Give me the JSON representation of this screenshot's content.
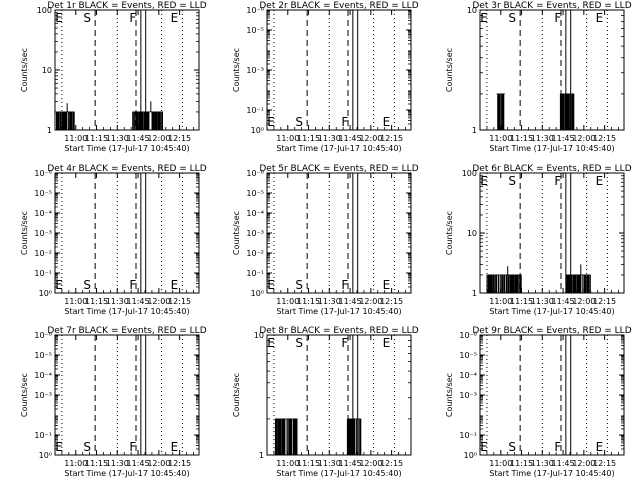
{
  "figure": {
    "xlabel": "Start Time (17-Jul-17 10:45:40)",
    "ylabel": "Counts/sec",
    "xticks": [
      {
        "t": 15,
        "label": "11:00"
      },
      {
        "t": 30,
        "label": "11:15"
      },
      {
        "t": 45,
        "label": "11:30"
      },
      {
        "t": 60,
        "label": "11:45"
      },
      {
        "t": 75,
        "label": "12:00"
      },
      {
        "t": 90,
        "label": "12:15"
      }
    ],
    "xlim_minutes_after_10_45": [
      0,
      104
    ],
    "markers": [
      {
        "t": 5,
        "style": "dotted"
      },
      {
        "t": 29,
        "style": "dashed",
        "letter": "S"
      },
      {
        "t": 45,
        "style": "dotted"
      },
      {
        "t": 58.5,
        "style": "dashed"
      },
      {
        "t": 62,
        "style": "solid",
        "letter": "F"
      },
      {
        "t": 65.5,
        "style": "solid"
      },
      {
        "t": 77,
        "style": "dotted"
      },
      {
        "t": 92,
        "style": "dotted",
        "letter": "E"
      }
    ],
    "left_letter": "E",
    "colors": {
      "events": "#000000",
      "lld": "#ff0000",
      "background": "#ffffff"
    }
  },
  "chart_data": [
    {
      "type": "line",
      "title": "Det 1r BLACK = Events, RED = LLD",
      "yscale": "log",
      "ylim": [
        1,
        100
      ],
      "yticks": [
        {
          "v": 1,
          "label": "1"
        },
        {
          "v": 10,
          "label": "10"
        },
        {
          "v": 100,
          "label": "100"
        }
      ],
      "series": [
        {
          "name": "Events",
          "color": "#000000",
          "segments": [
            {
              "t0": 1,
              "t1": 14,
              "level": 2,
              "dense": true,
              "spike": 2.8
            },
            {
              "t0": 56,
              "t1": 78,
              "level": 2,
              "dense": true,
              "spike": 3
            }
          ]
        }
      ]
    },
    {
      "type": "line",
      "title": "Det 2r BLACK = Events, RED = LLD",
      "yscale": "log",
      "ylim": [
        1e-06,
        1
      ],
      "yticks": [
        {
          "v": 1e-06,
          "label": "10⁰"
        },
        {
          "v": 1e-05,
          "label": "10⁻¹"
        },
        {
          "v": 0.001,
          "label": "10⁻³"
        },
        {
          "v": 0.1,
          "label": "10⁻⁵"
        },
        {
          "v": 1,
          "label": "10⁻⁶"
        }
      ],
      "series": [
        {
          "name": "Events",
          "color": "#000000",
          "segments": []
        }
      ]
    },
    {
      "type": "line",
      "title": "Det 3r BLACK = Events, RED = LLD",
      "yscale": "log",
      "ylim": [
        1,
        10
      ],
      "yticks": [
        {
          "v": 1,
          "label": "1"
        },
        {
          "v": 10,
          "label": "10"
        }
      ],
      "series": [
        {
          "name": "Events",
          "color": "#000000",
          "segments": [
            {
              "t0": 12,
              "t1": 18,
              "level": 2,
              "dense": true,
              "spike": 0
            },
            {
              "t0": 58,
              "t1": 68,
              "level": 2,
              "dense": true,
              "spike": 0
            }
          ]
        }
      ]
    },
    {
      "type": "line",
      "title": "Det 4r BLACK = Events, RED = LLD",
      "yscale": "log",
      "ylim": [
        1e-06,
        1
      ],
      "yticks": [
        {
          "v": 1e-06,
          "label": "10⁰"
        },
        {
          "v": 1e-05,
          "label": "10⁻¹"
        },
        {
          "v": 0.0001,
          "label": "10⁻²"
        },
        {
          "v": 0.001,
          "label": "10⁻³"
        },
        {
          "v": 0.01,
          "label": "10⁻⁴"
        },
        {
          "v": 0.1,
          "label": "10⁻⁵"
        },
        {
          "v": 1,
          "label": "10⁻⁶"
        }
      ],
      "series": [
        {
          "name": "Events",
          "color": "#000000",
          "segments": []
        }
      ]
    },
    {
      "type": "line",
      "title": "Det 5r BLACK = Events, RED = LLD",
      "yscale": "log",
      "ylim": [
        1e-06,
        1
      ],
      "yticks": [
        {
          "v": 1e-06,
          "label": "10⁰"
        },
        {
          "v": 1e-05,
          "label": "10⁻¹"
        },
        {
          "v": 0.0001,
          "label": "10⁻²"
        },
        {
          "v": 0.001,
          "label": "10⁻³"
        },
        {
          "v": 0.01,
          "label": "10⁻⁴"
        },
        {
          "v": 0.1,
          "label": "10⁻⁵"
        },
        {
          "v": 1,
          "label": "10⁻⁶"
        }
      ],
      "series": [
        {
          "name": "Events",
          "color": "#000000",
          "segments": []
        }
      ]
    },
    {
      "type": "line",
      "title": "Det 6r BLACK = Events, RED = LLD",
      "yscale": "log",
      "ylim": [
        1,
        100
      ],
      "yticks": [
        {
          "v": 1,
          "label": "1"
        },
        {
          "v": 10,
          "label": "10"
        },
        {
          "v": 100,
          "label": "100"
        }
      ],
      "series": [
        {
          "name": "Events",
          "color": "#000000",
          "segments": [
            {
              "t0": 5,
              "t1": 30,
              "level": 2,
              "dense": true,
              "spike": 2.8
            },
            {
              "t0": 62,
              "t1": 80,
              "level": 2,
              "dense": true,
              "spike": 3
            }
          ]
        }
      ]
    },
    {
      "type": "line",
      "title": "Det 7r BLACK = Events, RED = LLD",
      "yscale": "log",
      "ylim": [
        1e-06,
        1
      ],
      "yticks": [
        {
          "v": 1e-06,
          "label": "10⁰"
        },
        {
          "v": 1e-05,
          "label": "10⁻¹"
        },
        {
          "v": 0.001,
          "label": "10⁻³"
        },
        {
          "v": 0.01,
          "label": "10⁻⁴"
        },
        {
          "v": 0.1,
          "label": "10⁻⁵"
        },
        {
          "v": 1,
          "label": "10⁻⁶"
        }
      ],
      "series": [
        {
          "name": "Events",
          "color": "#000000",
          "segments": []
        }
      ]
    },
    {
      "type": "line",
      "title": "Det 8r BLACK = Events, RED = LLD",
      "yscale": "log",
      "ylim": [
        1,
        10
      ],
      "yticks": [
        {
          "v": 1,
          "label": "1"
        },
        {
          "v": 10,
          "label": "10"
        }
      ],
      "series": [
        {
          "name": "Events",
          "color": "#000000",
          "segments": [
            {
              "t0": 6,
              "t1": 22,
              "level": 2,
              "dense": true,
              "spike": 0
            },
            {
              "t0": 58,
              "t1": 68,
              "level": 2,
              "dense": true,
              "spike": 0
            }
          ]
        }
      ]
    },
    {
      "type": "line",
      "title": "Det 9r BLACK = Events, RED = LLD",
      "yscale": "log",
      "ylim": [
        1e-06,
        1
      ],
      "yticks": [
        {
          "v": 1e-06,
          "label": "10⁰"
        },
        {
          "v": 1e-05,
          "label": "10⁻¹"
        },
        {
          "v": 0.001,
          "label": "10⁻³"
        },
        {
          "v": 0.01,
          "label": "10⁻⁴"
        },
        {
          "v": 0.1,
          "label": "10⁻⁵"
        },
        {
          "v": 1,
          "label": "10⁻⁶"
        }
      ],
      "series": [
        {
          "name": "Events",
          "color": "#000000",
          "segments": []
        }
      ]
    }
  ]
}
